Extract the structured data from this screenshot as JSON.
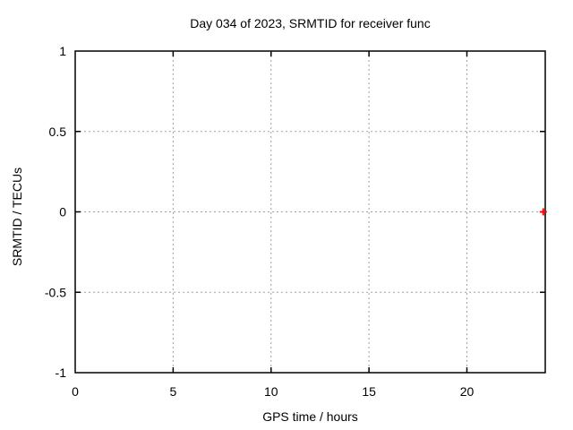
{
  "chart_data": {
    "type": "scatter",
    "title": "Day 034 of 2023, SRMTID for receiver func",
    "xlabel": "GPS time / hours",
    "ylabel": "SRMTID / TECUs",
    "xlim": [
      0,
      24
    ],
    "ylim": [
      -1,
      1
    ],
    "xticks": [
      0,
      5,
      10,
      15,
      20
    ],
    "yticks": [
      -1,
      -0.5,
      0,
      0.5,
      1
    ],
    "grid": true,
    "grid_style": "dotted",
    "legend": "none",
    "series": [
      {
        "name": "SRMTID",
        "marker": "plus",
        "color": "#ff0000",
        "points": [
          {
            "x": 23.9,
            "y": 0.0
          }
        ]
      }
    ],
    "colors": {
      "background": "#ffffff",
      "axis": "#000000",
      "grid": "#a0a0a0",
      "text": "#000000",
      "marker": "#ff0000"
    }
  }
}
